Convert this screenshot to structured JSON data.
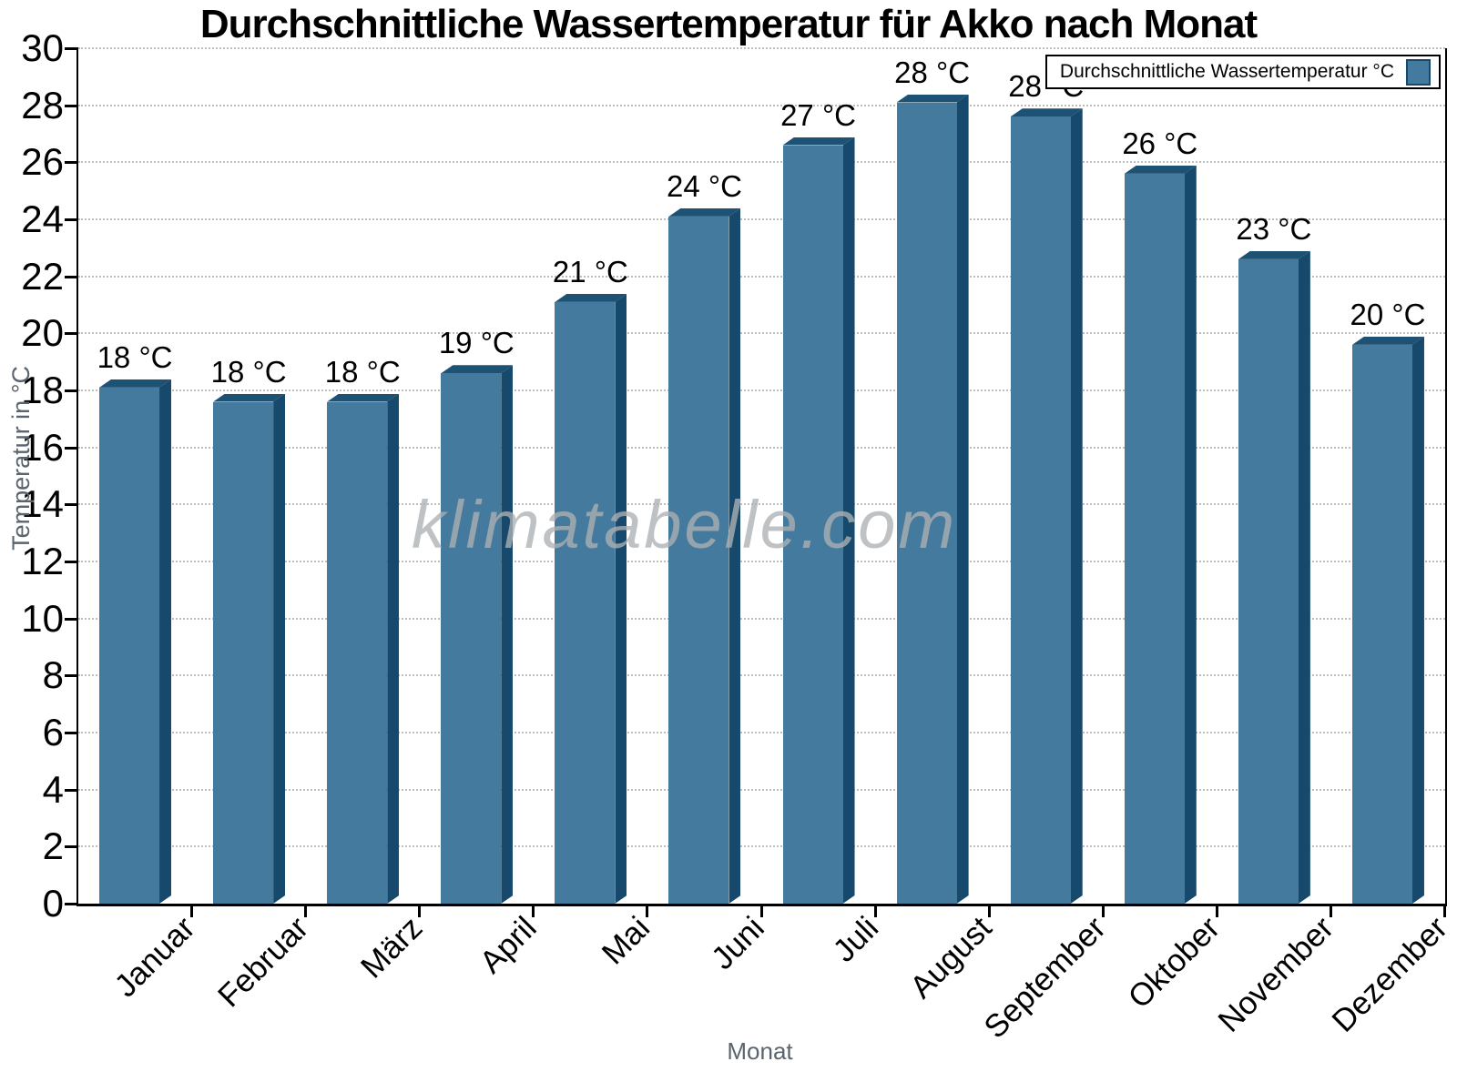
{
  "title": "Durchschnittliche Wassertemperatur für Akko nach Monat",
  "legend": {
    "label": "Durchschnittliche Wassertemperatur °C"
  },
  "watermark": "klimatabelle.com",
  "axes": {
    "y_label": "Temperatur in °C",
    "x_label": "Monat"
  },
  "chart_data": {
    "type": "bar",
    "title": "Durchschnittliche Wassertemperatur für Akko nach Monat",
    "categories": [
      "Januar",
      "Februar",
      "März",
      "April",
      "Mai",
      "Juni",
      "Juli",
      "August",
      "September",
      "Oktober",
      "November",
      "Dezember"
    ],
    "values": [
      18.1,
      17.6,
      17.6,
      18.6,
      21.1,
      24.1,
      26.6,
      28.1,
      27.6,
      25.6,
      22.6,
      19.6
    ],
    "bar_labels": [
      "18 °C",
      "18 °C",
      "18 °C",
      "19 °C",
      "21 °C",
      "24 °C",
      "27 °C",
      "28 °C",
      "28 °C",
      "26 °C",
      "23 °C",
      "20 °C"
    ],
    "xlabel": "Monat",
    "ylabel": "Temperatur in °C",
    "ylim": [
      0,
      30
    ],
    "ytick_step": 2,
    "grid": "horizontal dotted lines every 2 °C",
    "legend_entry": "Durchschnittliche Wassertemperatur °C",
    "legend_position": "top-right",
    "colors": {
      "bar_front": "#447A9D",
      "bar_dark": "#16496B",
      "bar_top": "#1E5274",
      "grid": "#bcbcbc",
      "axis": "#000000",
      "muted": "#5a646e",
      "watermark": "#aeb1b4"
    }
  }
}
